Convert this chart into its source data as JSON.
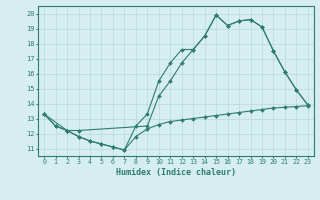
{
  "line1_x": [
    0,
    1,
    2,
    3,
    4,
    5,
    6,
    7,
    8,
    9,
    10,
    11,
    12,
    13,
    14,
    15,
    16,
    17,
    18,
    19,
    20,
    21,
    22,
    23
  ],
  "line1_y": [
    13.3,
    12.5,
    12.2,
    11.8,
    11.5,
    11.3,
    11.1,
    10.9,
    12.5,
    13.3,
    15.5,
    16.7,
    17.6,
    17.6,
    18.5,
    19.9,
    19.2,
    19.5,
    19.6,
    19.1,
    17.5,
    16.1,
    14.9,
    13.9
  ],
  "line2_x": [
    0,
    2,
    3,
    9,
    10,
    11,
    12,
    13,
    14,
    15,
    16,
    17,
    18,
    19,
    20,
    21,
    22,
    23
  ],
  "line2_y": [
    13.3,
    12.2,
    12.2,
    12.5,
    14.5,
    15.5,
    16.7,
    17.6,
    18.5,
    19.9,
    19.2,
    19.5,
    19.6,
    19.1,
    17.5,
    16.1,
    14.9,
    13.9
  ],
  "line3_x": [
    0,
    1,
    2,
    3,
    4,
    5,
    6,
    7,
    8,
    9,
    10,
    11,
    12,
    13,
    14,
    15,
    16,
    17,
    18,
    19,
    20,
    21,
    22,
    23
  ],
  "line3_y": [
    13.3,
    12.5,
    12.2,
    11.8,
    11.5,
    11.3,
    11.1,
    10.9,
    11.8,
    12.3,
    12.6,
    12.8,
    12.9,
    13.0,
    13.1,
    13.2,
    13.3,
    13.4,
    13.5,
    13.6,
    13.7,
    13.75,
    13.8,
    13.85
  ],
  "color": "#2e7d6e",
  "bg_color": "#d6eef0",
  "grid_color": "#b8d8db",
  "xlabel": "Humidex (Indice chaleur)",
  "xlim": [
    -0.5,
    23.5
  ],
  "ylim": [
    10.5,
    20.5
  ],
  "xticks": [
    0,
    1,
    2,
    3,
    4,
    5,
    6,
    7,
    8,
    9,
    10,
    11,
    12,
    13,
    14,
    15,
    16,
    17,
    18,
    19,
    20,
    21,
    22,
    23
  ],
  "yticks": [
    11,
    12,
    13,
    14,
    15,
    16,
    17,
    18,
    19,
    20
  ]
}
